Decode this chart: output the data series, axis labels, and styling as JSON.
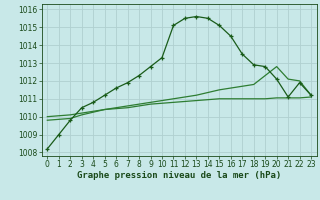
{
  "bg_color": "#c8e8e8",
  "grid_color": "#b0d0d0",
  "line_main_color": "#1a5c1a",
  "line2_color": "#2e7d32",
  "line3_color": "#2e7d32",
  "x": [
    0,
    1,
    2,
    3,
    4,
    5,
    6,
    7,
    8,
    9,
    10,
    11,
    12,
    13,
    14,
    15,
    16,
    17,
    18,
    19,
    20,
    21,
    22,
    23
  ],
  "y_main": [
    1008.2,
    1009.0,
    1009.8,
    1010.5,
    1010.8,
    1011.2,
    1011.6,
    1011.9,
    1012.3,
    1012.8,
    1013.3,
    1015.1,
    1015.5,
    1015.6,
    1015.5,
    1015.1,
    1014.5,
    1013.5,
    1012.9,
    1012.8,
    1012.1,
    1011.1,
    1011.9,
    1011.2
  ],
  "y_line2": [
    1010.0,
    1010.05,
    1010.1,
    1010.2,
    1010.3,
    1010.4,
    1010.45,
    1010.5,
    1010.6,
    1010.7,
    1010.75,
    1010.8,
    1010.85,
    1010.9,
    1010.95,
    1011.0,
    1011.0,
    1011.0,
    1011.0,
    1011.0,
    1011.05,
    1011.05,
    1011.05,
    1011.1
  ],
  "y_line3": [
    1009.8,
    1009.85,
    1009.9,
    1010.1,
    1010.25,
    1010.4,
    1010.5,
    1010.6,
    1010.7,
    1010.8,
    1010.9,
    1011.0,
    1011.1,
    1011.2,
    1011.35,
    1011.5,
    1011.6,
    1011.7,
    1011.8,
    1012.3,
    1012.8,
    1012.1,
    1012.0,
    1011.2
  ],
  "ylim": [
    1007.8,
    1016.3
  ],
  "yticks": [
    1008,
    1009,
    1010,
    1011,
    1012,
    1013,
    1014,
    1015,
    1016
  ],
  "xlim": [
    -0.5,
    23.5
  ],
  "xticks": [
    0,
    1,
    2,
    3,
    4,
    5,
    6,
    7,
    8,
    9,
    10,
    11,
    12,
    13,
    14,
    15,
    16,
    17,
    18,
    19,
    20,
    21,
    22,
    23
  ],
  "xlabel": "Graphe pression niveau de la mer (hPa)",
  "tick_fontsize": 5.5,
  "label_fontsize": 6.5
}
